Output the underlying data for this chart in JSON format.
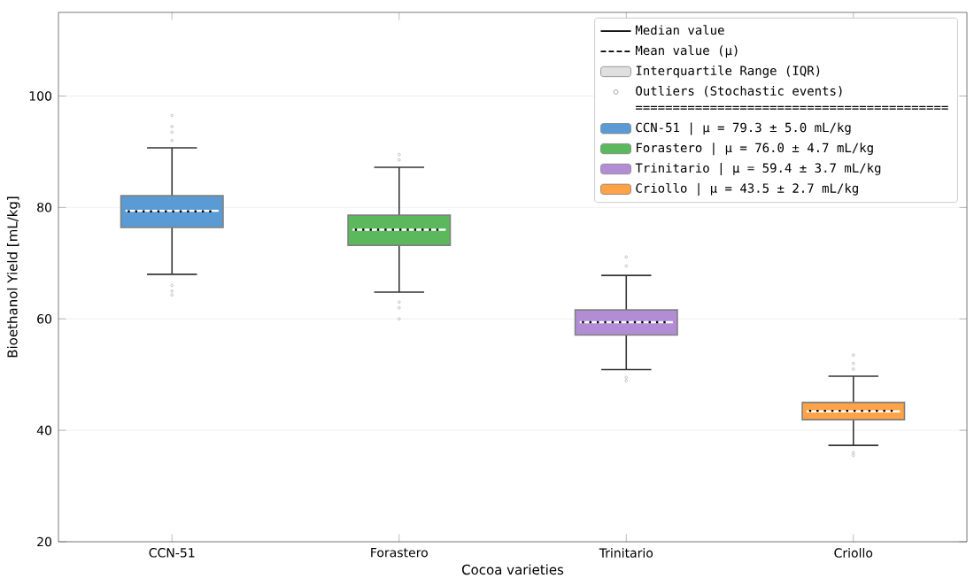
{
  "chart_data": {
    "type": "box",
    "xlabel": "Cocoa varieties",
    "ylabel": "Bioethanol Yield [mL/kg]",
    "categories": [
      "CCN-51",
      "Forastero",
      "Trinitario",
      "Criollo"
    ],
    "ylim": [
      20,
      115
    ],
    "yticks": [
      20,
      40,
      60,
      80,
      100
    ],
    "grid": "y",
    "legend": "top right",
    "annotations": [
      "Median value",
      "Mean value (μ)",
      "Interquartile Range (IQR)",
      "Outliers (Stochastic events)",
      "=========================================="
    ],
    "series": [
      {
        "name": "CCN-51 | μ = 79.3 ± 5.0 mL/kg",
        "color": "#5b9bd5",
        "boxes": [
          {
            "low": 68.0,
            "q1": 76.4,
            "median": 79.4,
            "q3": 82.1,
            "high": 90.7,
            "mean": 79.3,
            "outliers": [
              92,
              93.5,
              94.5,
              96.5,
              66,
              65,
              64.3
            ]
          },
          null,
          null,
          null
        ]
      },
      {
        "name": "Forastero | μ = 76.0 ± 4.7 mL/kg",
        "color": "#5cb85c",
        "boxes": [
          null,
          {
            "low": 64.8,
            "q1": 73.2,
            "median": 76.0,
            "q3": 78.6,
            "high": 87.2,
            "mean": 76.0,
            "outliers": [
              88.5,
              89.5,
              63,
              62,
              60
            ]
          },
          null,
          null
        ]
      },
      {
        "name": "Trinitario | μ = 59.4 ± 3.7 mL/kg",
        "color": "#b28dd6",
        "boxes": [
          null,
          null,
          {
            "low": 50.9,
            "q1": 57.1,
            "median": 59.4,
            "q3": 61.6,
            "high": 67.8,
            "mean": 59.4,
            "outliers": [
              71.1,
              69.5,
              49.5,
              48.9
            ]
          },
          null
        ]
      },
      {
        "name": "Criollo | μ = 43.5 ± 2.7 mL/kg",
        "color": "#ffa348",
        "boxes": [
          null,
          null,
          null,
          {
            "low": 37.3,
            "q1": 41.9,
            "median": 43.4,
            "q3": 45.0,
            "high": 49.7,
            "mean": 43.5,
            "outliers": [
              53.5,
              52,
              51,
              36,
              35.5
            ]
          }
        ]
      }
    ]
  }
}
